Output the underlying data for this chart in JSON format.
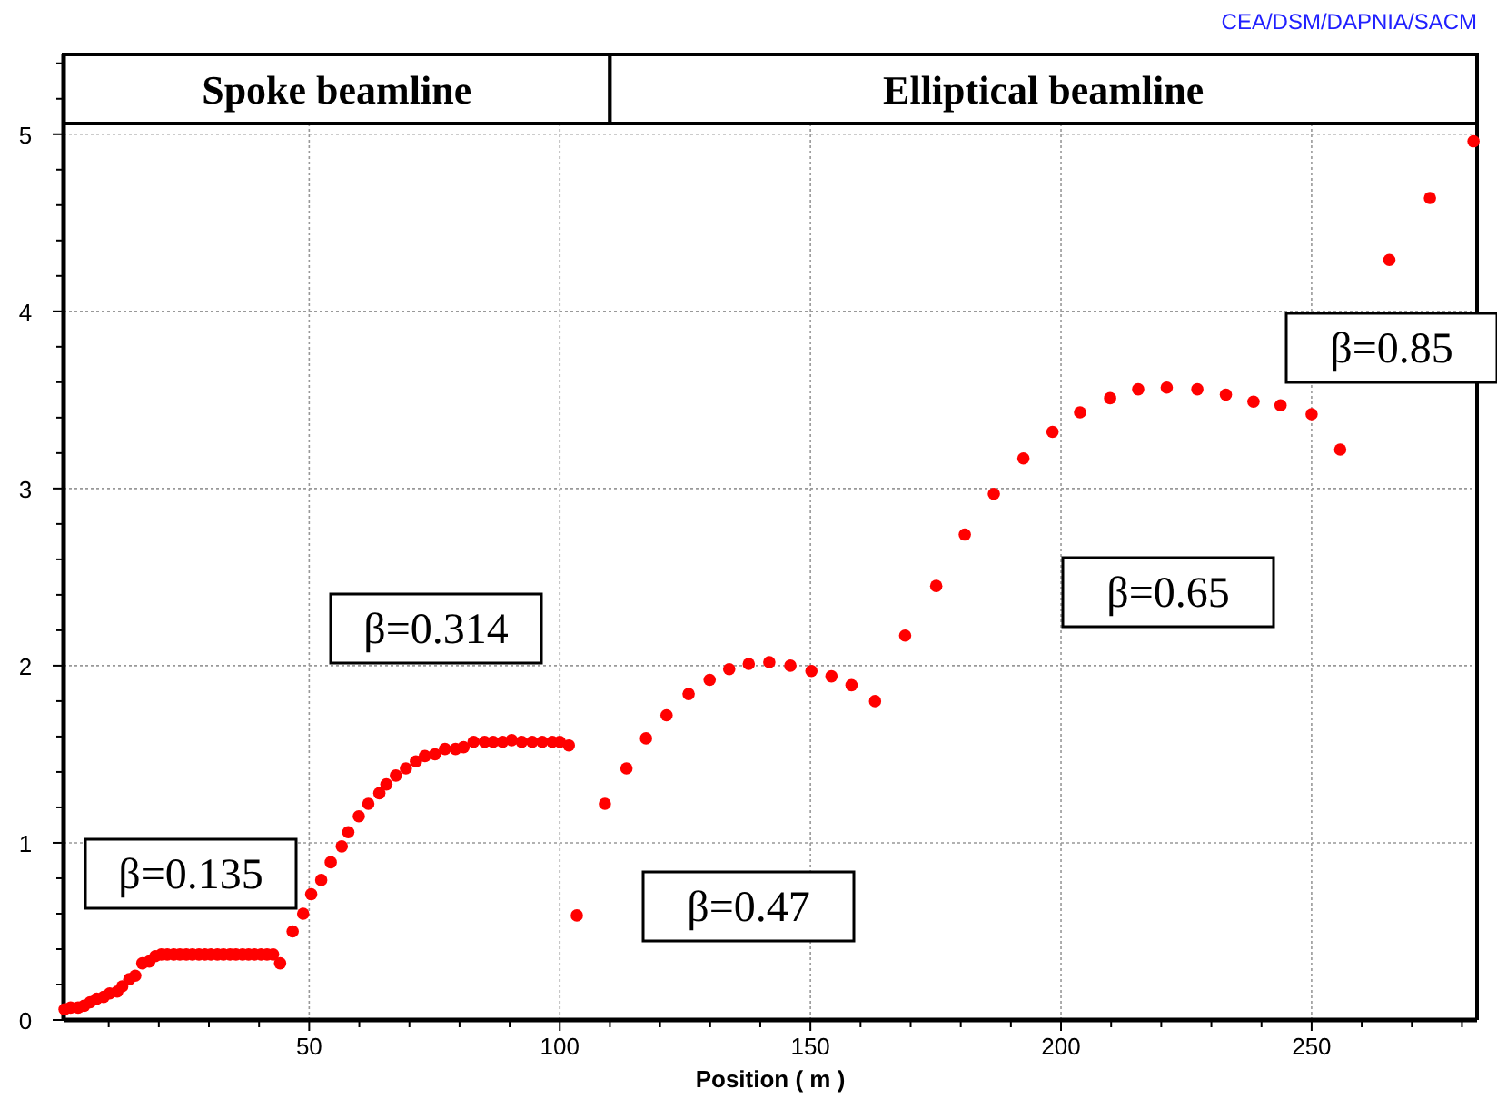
{
  "chart_data": {
    "type": "scatter",
    "xlabel": "Position ( m )",
    "marker": "circle",
    "grid": true,
    "xlim": [
      1,
      283
    ],
    "ylim": [
      0,
      5.45
    ],
    "xticks": [
      {
        "value": 10,
        "label": null
      },
      {
        "value": 20,
        "label": null
      },
      {
        "value": 30,
        "label": null
      },
      {
        "value": 40,
        "label": null
      },
      50,
      {
        "value": 60,
        "label": null
      },
      {
        "value": 70,
        "label": null
      },
      {
        "value": 80,
        "label": null
      },
      {
        "value": 90,
        "label": null
      },
      100,
      {
        "value": 110,
        "label": null
      },
      {
        "value": 120,
        "label": null
      },
      {
        "value": 130,
        "label": null
      },
      {
        "value": 140,
        "label": null
      },
      150,
      {
        "value": 160,
        "label": null
      },
      {
        "value": 170,
        "label": null
      },
      {
        "value": 180,
        "label": null
      },
      {
        "value": 190,
        "label": null
      },
      200,
      {
        "value": 210,
        "label": null
      },
      {
        "value": 220,
        "label": null
      },
      {
        "value": 230,
        "label": null
      },
      {
        "value": 240,
        "label": null
      },
      250,
      {
        "value": 260,
        "label": null
      },
      {
        "value": 270,
        "label": null
      },
      {
        "value": 280,
        "label": null
      }
    ],
    "yticks": [
      0,
      {
        "value": 0.2,
        "label": null
      },
      {
        "value": 0.4,
        "label": null
      },
      {
        "value": 0.6,
        "label": null
      },
      {
        "value": 0.8,
        "label": null
      },
      1,
      {
        "value": 1.2,
        "label": null
      },
      {
        "value": 1.4,
        "label": null
      },
      {
        "value": 1.6,
        "label": null
      },
      {
        "value": 1.8,
        "label": null
      },
      2,
      {
        "value": 2.2,
        "label": null
      },
      {
        "value": 2.4,
        "label": null
      },
      {
        "value": 2.6,
        "label": null
      },
      {
        "value": 2.8,
        "label": null
      },
      3,
      {
        "value": 3.2,
        "label": null
      },
      {
        "value": 3.4,
        "label": null
      },
      {
        "value": 3.6,
        "label": null
      },
      {
        "value": 3.8,
        "label": null
      },
      4,
      {
        "value": 4.2,
        "label": null
      },
      {
        "value": 4.4,
        "label": null
      },
      {
        "value": 4.6,
        "label": null
      },
      {
        "value": 4.8,
        "label": null
      },
      5,
      {
        "value": 5.2,
        "label": null
      },
      {
        "value": 5.4,
        "label": null
      }
    ],
    "bands": [
      {
        "axis": "x",
        "from": 1,
        "to": 110,
        "label": "Spoke beamline"
      },
      {
        "axis": "x",
        "from": 110,
        "to": 283,
        "label": "Elliptical beamline"
      }
    ],
    "annotations": [
      "CEA/DSM/DAPNIA/SACM",
      "β=0.135",
      "β=0.314",
      "β=0.47",
      "β=0.65",
      "β=0.85"
    ],
    "series": [
      {
        "color": "#ff0000",
        "x": [
          1.2,
          2.4,
          3.9,
          5.1,
          6.3,
          7.6,
          9.0,
          10.2,
          11.7,
          12.7,
          14.1,
          15.3,
          16.7,
          18.1,
          19.3,
          20.5,
          21.7,
          23.0,
          24.2,
          25.5,
          26.7,
          28.0,
          29.2,
          30.4,
          31.7,
          32.9,
          34.2,
          35.4,
          36.7,
          37.9,
          39.1,
          40.4,
          41.6,
          42.8,
          44.2,
          46.7,
          48.8,
          50.4,
          52.4,
          54.3,
          56.5,
          57.8,
          59.9,
          61.8,
          64.0,
          65.4,
          67.3,
          69.3,
          71.3,
          73.1,
          75.1,
          77.1,
          79.2,
          80.8,
          82.8,
          85.0,
          86.7,
          88.6,
          90.4,
          92.4,
          94.5,
          96.5,
          98.5,
          100.0,
          101.8,
          103.4,
          109.0,
          113.3,
          117.2,
          121.3,
          125.7,
          129.9,
          133.8,
          137.7,
          141.8,
          146.0,
          150.2,
          154.2,
          158.2,
          162.9,
          168.9,
          175.1,
          180.8,
          186.6,
          192.5,
          198.3,
          203.8,
          209.8,
          215.4,
          221.1,
          227.2,
          232.9,
          238.4,
          243.8,
          250.0,
          255.7,
          265.5,
          273.6,
          282.3
        ],
        "values": [
          0.06,
          0.07,
          0.07,
          0.08,
          0.1,
          0.12,
          0.13,
          0.15,
          0.16,
          0.19,
          0.23,
          0.25,
          0.32,
          0.33,
          0.36,
          0.37,
          0.37,
          0.37,
          0.37,
          0.37,
          0.37,
          0.37,
          0.37,
          0.37,
          0.37,
          0.37,
          0.37,
          0.37,
          0.37,
          0.37,
          0.37,
          0.37,
          0.37,
          0.37,
          0.32,
          0.5,
          0.6,
          0.71,
          0.79,
          0.89,
          0.98,
          1.06,
          1.15,
          1.22,
          1.28,
          1.33,
          1.38,
          1.42,
          1.46,
          1.49,
          1.5,
          1.53,
          1.53,
          1.54,
          1.57,
          1.57,
          1.57,
          1.57,
          1.58,
          1.57,
          1.57,
          1.57,
          1.57,
          1.57,
          1.55,
          0.59,
          1.22,
          1.42,
          1.59,
          1.72,
          1.84,
          1.92,
          1.98,
          2.01,
          2.02,
          2.0,
          1.97,
          1.94,
          1.89,
          1.8,
          2.17,
          2.45,
          2.74,
          2.97,
          3.17,
          3.32,
          3.43,
          3.51,
          3.56,
          3.57,
          3.56,
          3.53,
          3.49,
          3.47,
          3.42,
          3.22,
          4.29,
          4.64,
          4.96
        ]
      }
    ]
  }
}
